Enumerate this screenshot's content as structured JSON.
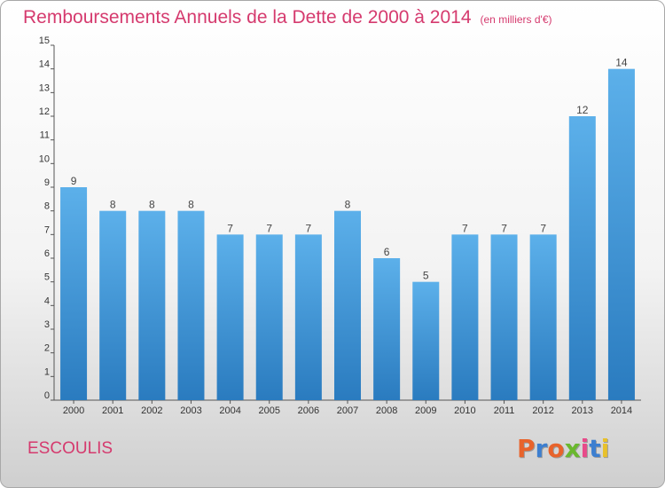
{
  "header": {
    "title": "Remboursements Annuels de la Dette de 2000 à 2014",
    "subtitle": "(en milliers d'€)"
  },
  "footer": {
    "commune": "ESCOULIS",
    "logo_text": "Proxiti"
  },
  "colors": {
    "title": "#d53a6e",
    "bar_top": "#5cb0ea",
    "bar_bottom": "#2a7bbf",
    "logo_letters": [
      "#e8632b",
      "#3d7fd0",
      "#e8632b",
      "#6ab82e",
      "#e84a8a",
      "#3d7fd0",
      "#e8c12b"
    ]
  },
  "chart_data": {
    "type": "bar",
    "categories": [
      "2000",
      "2001",
      "2002",
      "2003",
      "2004",
      "2005",
      "2006",
      "2007",
      "2008",
      "2009",
      "2010",
      "2011",
      "2012",
      "2013",
      "2014"
    ],
    "values": [
      9,
      8,
      8,
      8,
      7,
      7,
      7,
      8,
      6,
      5,
      7,
      7,
      7,
      12,
      14
    ],
    "title": "Remboursements Annuels de la Dette de 2000 à 2014",
    "ylim": [
      0,
      15
    ],
    "yticks": [
      0,
      1,
      2,
      3,
      4,
      5,
      6,
      7,
      8,
      9,
      10,
      11,
      12,
      13,
      14,
      15
    ],
    "grid": false,
    "data_labels": true
  }
}
